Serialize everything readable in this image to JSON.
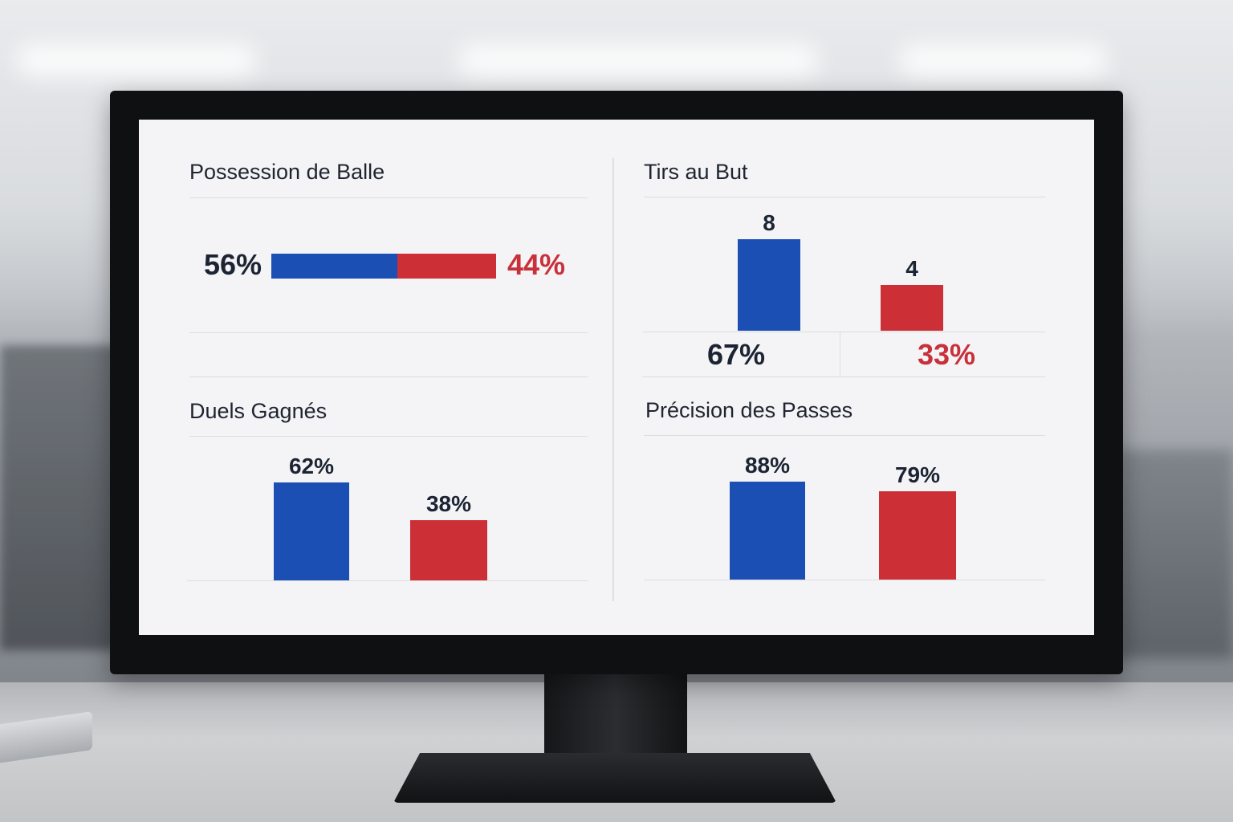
{
  "colors": {
    "home": "#1b4fb3",
    "away": "#cc2f35",
    "text": "#1c2433",
    "red_text": "#c8303a"
  },
  "chart_data": [
    {
      "type": "bar",
      "title": "Possession de Balle",
      "orientation": "horizontal-stacked",
      "values": [
        56,
        44
      ],
      "labels": [
        "56%",
        "44%"
      ],
      "colors": [
        "#1b4fb3",
        "#cc2f35"
      ]
    },
    {
      "type": "bar",
      "title": "Tirs au But",
      "values": [
        8,
        4
      ],
      "labels": [
        "8",
        "4"
      ],
      "shares": [
        "67%",
        "33%"
      ],
      "colors": [
        "#1b4fb3",
        "#cc2f35"
      ],
      "ylim": [
        0,
        8
      ]
    },
    {
      "type": "bar",
      "title": "Duels Gagnés",
      "values": [
        62,
        38
      ],
      "labels": [
        "62%",
        "38%"
      ],
      "colors": [
        "#1b4fb3",
        "#cc2f35"
      ],
      "ylim": [
        0,
        100
      ]
    },
    {
      "type": "bar",
      "title": "Précision des Passes",
      "values": [
        88,
        79
      ],
      "labels": [
        "88%",
        "79%"
      ],
      "colors": [
        "#1b4fb3",
        "#cc2f35"
      ],
      "ylim": [
        0,
        100
      ]
    }
  ]
}
